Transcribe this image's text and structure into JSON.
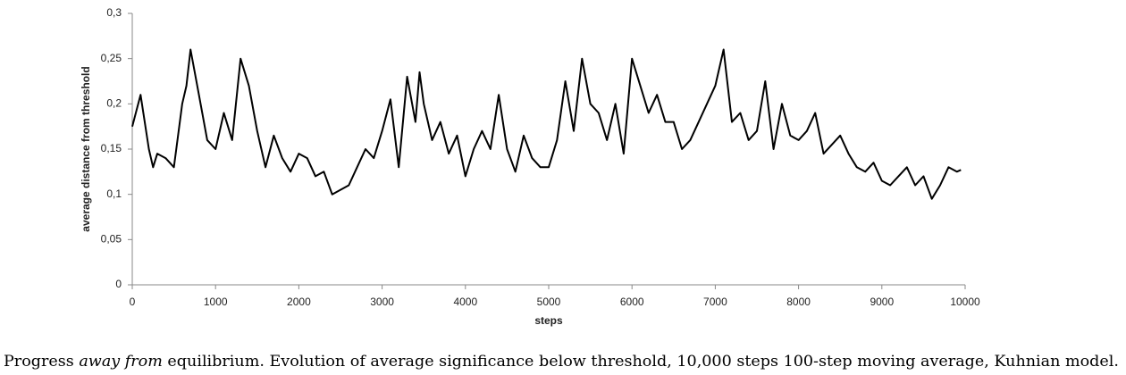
{
  "chart_data": {
    "type": "line",
    "x_label": "steps",
    "y_label": "average distance from threshold",
    "caption": [
      "Progress ",
      "away from",
      " equilibrium. Evolution of average significance below threshold, 10,000 steps 100-step moving average, Kuhnian model."
    ],
    "xlim": [
      0,
      10000
    ],
    "xticks": [
      0,
      1000,
      2000,
      3000,
      4000,
      5000,
      6000,
      7000,
      8000,
      9000,
      10000
    ],
    "ylim": [
      0,
      0.3
    ],
    "yticks": [
      0,
      {
        "value": 0.05,
        "label": "0,05"
      },
      {
        "value": 0.1,
        "label": "0,1"
      },
      {
        "value": 0.15,
        "label": "0,15"
      },
      {
        "value": 0.2,
        "label": "0,2"
      },
      {
        "value": 0.25,
        "label": "0,25"
      },
      {
        "value": 0.3,
        "label": "0,3"
      }
    ],
    "grid": false,
    "series": [
      {
        "color": "#000000",
        "x": [
          0,
          100,
          200,
          250,
          300,
          400,
          500,
          600,
          650,
          700,
          800,
          900,
          1000,
          1100,
          1200,
          1300,
          1400,
          1500,
          1600,
          1700,
          1800,
          1900,
          2000,
          2100,
          2200,
          2300,
          2400,
          2500,
          2600,
          2700,
          2800,
          2900,
          3000,
          3100,
          3200,
          3300,
          3400,
          3450,
          3500,
          3600,
          3700,
          3800,
          3900,
          4000,
          4100,
          4200,
          4300,
          4400,
          4500,
          4600,
          4700,
          4800,
          4900,
          5000,
          5100,
          5200,
          5300,
          5400,
          5500,
          5600,
          5700,
          5800,
          5900,
          6000,
          6100,
          6200,
          6300,
          6400,
          6500,
          6600,
          6700,
          6800,
          6900,
          7000,
          7100,
          7200,
          7300,
          7400,
          7500,
          7600,
          7700,
          7800,
          7900,
          8000,
          8100,
          8200,
          8300,
          8400,
          8500,
          8600,
          8700,
          8800,
          8900,
          9000,
          9100,
          9200,
          9300,
          9400,
          9500,
          9600,
          9700,
          9800,
          9900,
          9950
        ],
        "values": [
          0.175,
          0.21,
          0.15,
          0.13,
          0.145,
          0.14,
          0.13,
          0.2,
          0.22,
          0.26,
          0.21,
          0.16,
          0.15,
          0.19,
          0.16,
          0.25,
          0.22,
          0.17,
          0.13,
          0.165,
          0.14,
          0.125,
          0.145,
          0.14,
          0.12,
          0.125,
          0.1,
          0.105,
          0.11,
          0.13,
          0.15,
          0.14,
          0.17,
          0.205,
          0.13,
          0.23,
          0.18,
          0.235,
          0.2,
          0.16,
          0.18,
          0.145,
          0.165,
          0.12,
          0.15,
          0.17,
          0.15,
          0.21,
          0.15,
          0.125,
          0.165,
          0.14,
          0.13,
          0.13,
          0.16,
          0.225,
          0.17,
          0.25,
          0.2,
          0.19,
          0.16,
          0.2,
          0.145,
          0.25,
          0.22,
          0.19,
          0.21,
          0.18,
          0.18,
          0.15,
          0.16,
          0.18,
          0.2,
          0.22,
          0.26,
          0.18,
          0.19,
          0.16,
          0.17,
          0.225,
          0.15,
          0.2,
          0.165,
          0.16,
          0.17,
          0.19,
          0.145,
          0.155,
          0.165,
          0.145,
          0.13,
          0.125,
          0.135,
          0.115,
          0.11,
          0.12,
          0.13,
          0.11,
          0.12,
          0.095,
          0.11,
          0.13,
          0.125,
          0.127
        ]
      }
    ]
  }
}
